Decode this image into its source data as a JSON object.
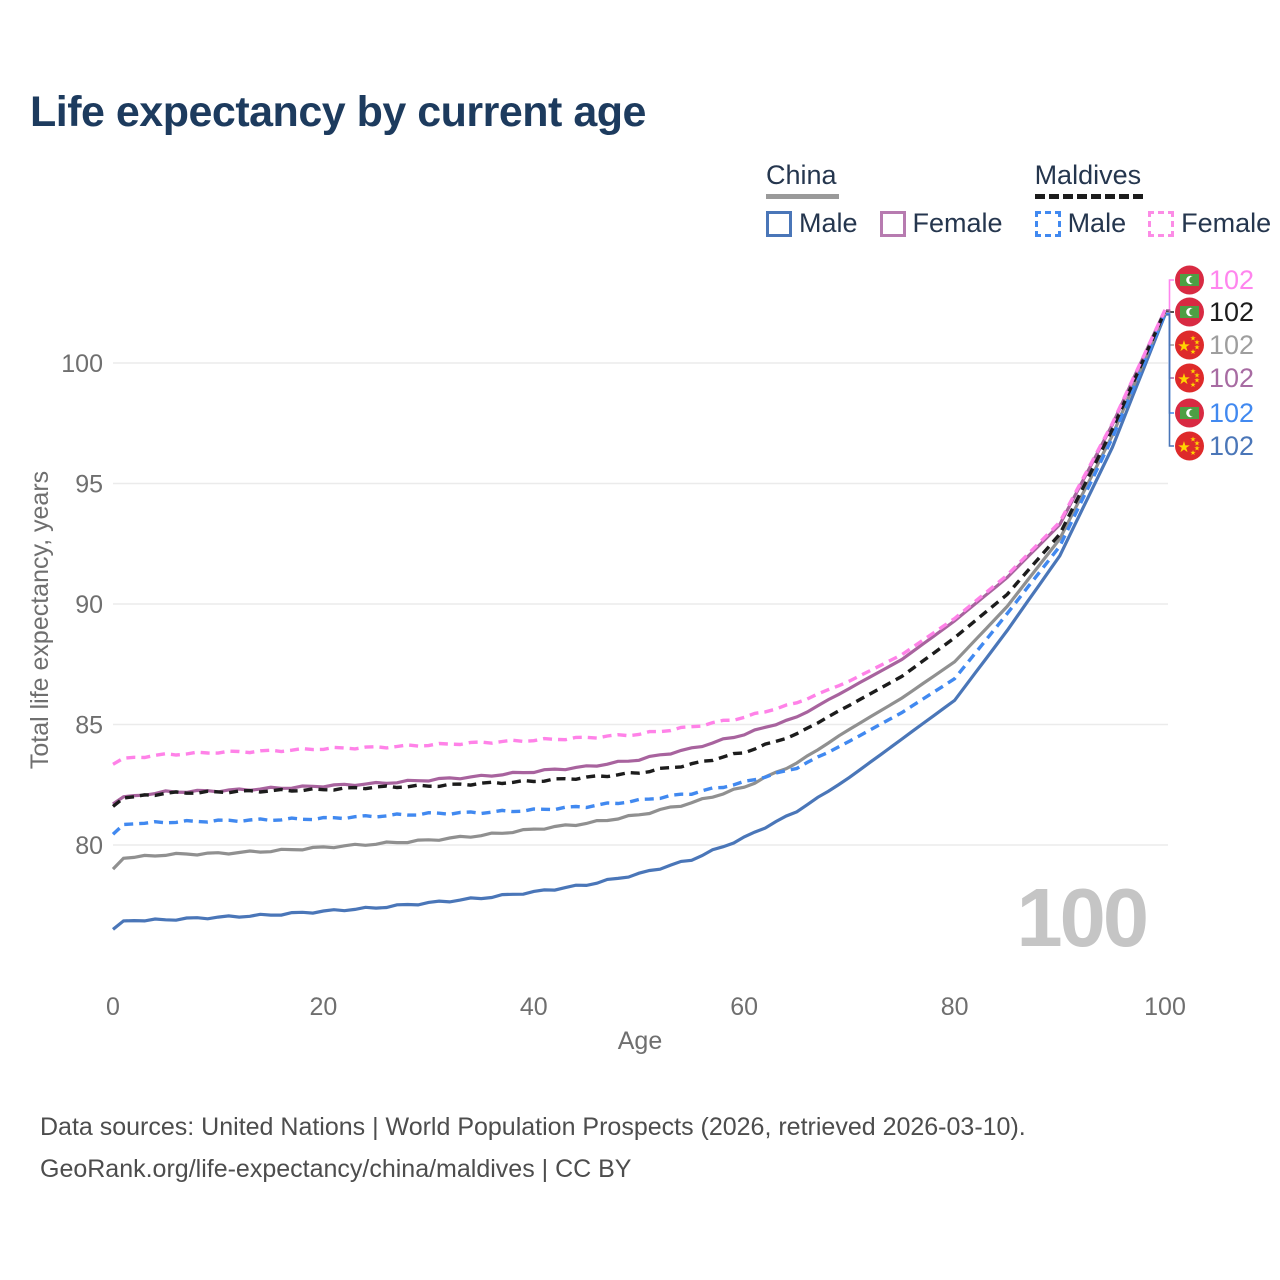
{
  "title": "Life expectancy by current age",
  "legend": {
    "groups": [
      {
        "label": "China",
        "dashed": false,
        "underline_color": "#9a9a9a",
        "items": [
          {
            "label": "Male",
            "color": "#4a76b8"
          },
          {
            "label": "Female",
            "color": "#b77bb0"
          }
        ]
      },
      {
        "label": "Maldives",
        "dashed": true,
        "underline_color": "#1c1c1c",
        "items": [
          {
            "label": "Male",
            "color": "#4189f0"
          },
          {
            "label": "Female",
            "color": "#fc8ce6"
          }
        ]
      }
    ]
  },
  "chart_data": {
    "type": "line",
    "title": "Life expectancy by current age",
    "xlabel": "Age",
    "ylabel": "Total life expectancy, years",
    "x_ticks": [
      0,
      20,
      40,
      60,
      80,
      100
    ],
    "y_ticks": [
      80,
      85,
      90,
      95,
      100
    ],
    "xlim": [
      0,
      100
    ],
    "ylim": [
      76,
      103
    ],
    "grid": "horizontal-only",
    "age_counter": "100",
    "ages": [
      0,
      1,
      5,
      10,
      15,
      20,
      25,
      30,
      35,
      40,
      45,
      50,
      55,
      60,
      65,
      70,
      75,
      80,
      85,
      90,
      95,
      100
    ],
    "series": [
      {
        "name": "China Male",
        "country": "china",
        "sex": "Male",
        "color": "#4a76b8",
        "dashed": false,
        "values": [
          76.5,
          76.85,
          76.9,
          77.0,
          77.1,
          77.25,
          77.4,
          77.6,
          77.8,
          78.05,
          78.35,
          78.8,
          79.4,
          80.3,
          81.4,
          82.8,
          84.4,
          86.0,
          88.9,
          92.0,
          96.5,
          102.0
        ]
      },
      {
        "name": "China",
        "country": "china",
        "sex": "Both",
        "color": "#909090",
        "dashed": false,
        "values": [
          79.0,
          79.45,
          79.6,
          79.65,
          79.75,
          79.9,
          80.05,
          80.2,
          80.4,
          80.65,
          80.9,
          81.25,
          81.75,
          82.4,
          83.4,
          84.8,
          86.1,
          87.6,
          89.9,
          92.7,
          97.0,
          102.1
        ]
      },
      {
        "name": "China Female",
        "country": "china",
        "sex": "Female",
        "color": "#a8639e",
        "dashed": false,
        "values": [
          81.7,
          82.0,
          82.2,
          82.25,
          82.35,
          82.45,
          82.55,
          82.7,
          82.85,
          83.05,
          83.25,
          83.55,
          84.0,
          84.6,
          85.3,
          86.5,
          87.7,
          89.3,
          91.1,
          93.3,
          97.45,
          102.2
        ]
      },
      {
        "name": "Maldives Male",
        "country": "maldives",
        "sex": "Male",
        "color": "#4189f0",
        "dashed": true,
        "values": [
          80.45,
          80.85,
          80.95,
          81.0,
          81.05,
          81.1,
          81.2,
          81.3,
          81.35,
          81.45,
          81.6,
          81.85,
          82.15,
          82.6,
          83.2,
          84.3,
          85.5,
          86.9,
          89.6,
          92.4,
          96.9,
          102.05
        ]
      },
      {
        "name": "Maldives",
        "country": "maldives",
        "sex": "Both",
        "color": "#1c1c1c",
        "dashed": true,
        "values": [
          81.6,
          81.95,
          82.15,
          82.2,
          82.25,
          82.3,
          82.4,
          82.45,
          82.55,
          82.65,
          82.8,
          83.0,
          83.35,
          83.85,
          84.6,
          85.8,
          87.0,
          88.6,
          90.4,
          92.9,
          97.25,
          102.15
        ]
      },
      {
        "name": "Maldives Female",
        "country": "maldives",
        "sex": "Female",
        "color": "#ff82e8",
        "dashed": true,
        "values": [
          83.35,
          83.6,
          83.75,
          83.85,
          83.9,
          84.0,
          84.05,
          84.15,
          84.25,
          84.35,
          84.45,
          84.6,
          84.9,
          85.3,
          85.9,
          86.8,
          87.9,
          89.4,
          91.2,
          93.4,
          97.5,
          102.2
        ]
      }
    ],
    "end_labels": [
      {
        "series": "Maldives Female",
        "country": "maldives",
        "value": "102",
        "color": "#ff85ee"
      },
      {
        "series": "Maldives",
        "country": "maldives",
        "value": "102",
        "color": "#1d1d1d"
      },
      {
        "series": "China",
        "country": "china",
        "value": "102",
        "color": "#9e9e9e"
      },
      {
        "series": "China Female",
        "country": "china",
        "value": "102",
        "color": "#a76ba2"
      },
      {
        "series": "Maldives Male",
        "country": "maldives",
        "value": "102",
        "color": "#4189f0"
      },
      {
        "series": "China Male",
        "country": "china",
        "value": "102",
        "color": "#4a76b8"
      }
    ]
  },
  "footer": {
    "line1": "Data sources: United Nations | World Population Prospects (2026, retrieved 2026-03-10).",
    "line2": "GeoRank.org/life-expectancy/china/maldives | CC BY"
  }
}
